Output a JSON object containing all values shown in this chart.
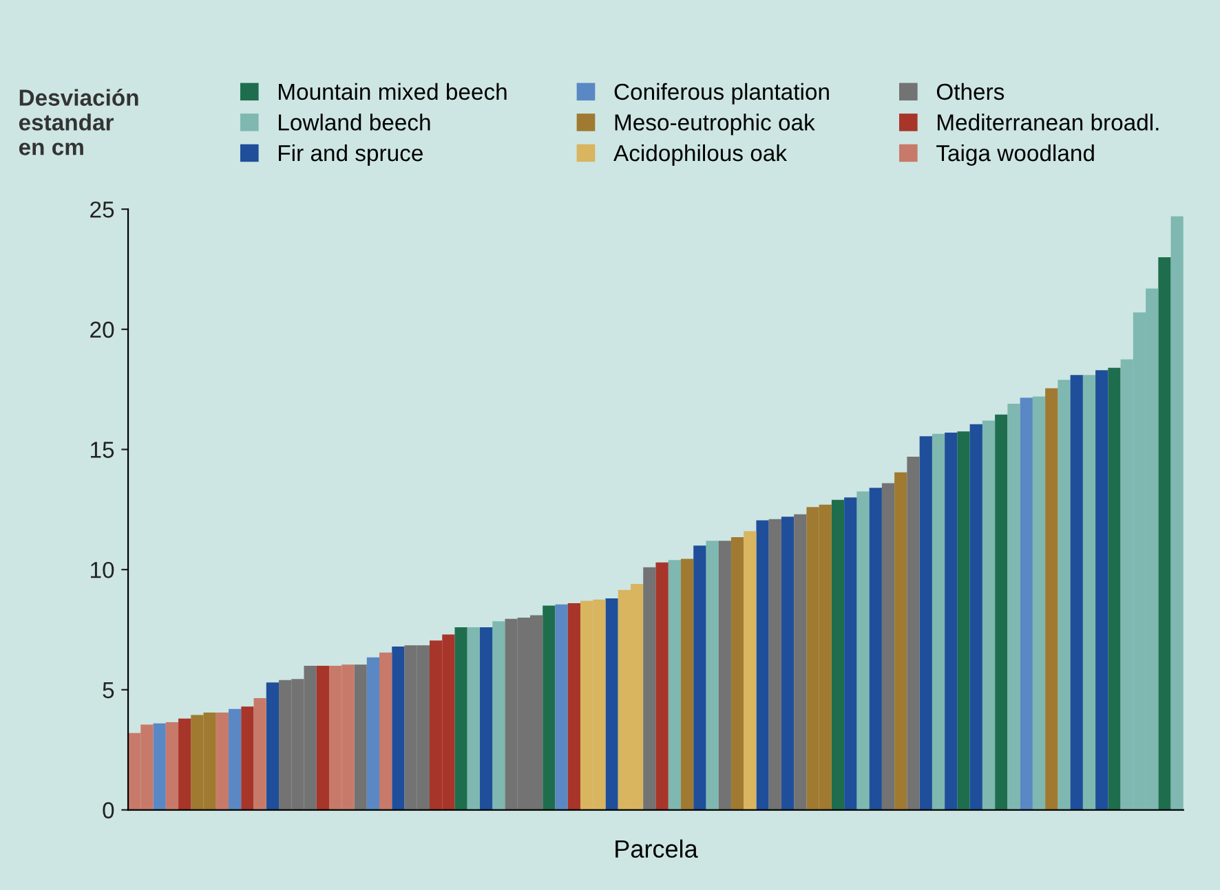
{
  "chart_data": {
    "type": "bar",
    "xlabel": "Parcela",
    "ylabel": "Desviación\nestandar\nen cm",
    "categories": [
      null,
      null,
      null,
      null,
      null,
      null,
      null,
      null,
      null,
      null,
      null,
      null,
      null,
      null,
      null,
      null,
      null,
      null,
      null,
      null,
      null,
      null,
      null,
      null,
      null,
      null,
      null,
      null,
      null,
      null,
      null,
      null,
      null,
      null,
      null,
      null,
      null,
      null,
      null,
      null,
      null,
      null,
      null,
      null,
      null,
      null,
      null,
      null,
      null,
      null,
      null,
      null,
      null,
      null,
      null,
      null,
      null,
      null,
      null,
      null,
      null,
      null,
      null,
      null,
      null,
      null,
      null,
      null,
      null,
      null,
      null,
      null,
      null,
      null,
      null,
      null,
      null,
      null,
      null,
      null,
      null,
      null,
      null,
      null
    ],
    "series": [
      {
        "name": "Mountain mixed beech",
        "color": "#1e6e4e",
        "values": [
          null,
          null,
          null,
          null,
          null,
          null,
          null,
          null,
          null,
          null,
          null,
          null,
          null,
          null,
          null,
          null,
          null,
          null,
          null,
          null,
          null,
          null,
          null,
          null,
          null,
          null,
          7.6,
          null,
          null,
          null,
          null,
          null,
          null,
          8.5,
          null,
          null,
          null,
          null,
          null,
          null,
          null,
          null,
          null,
          null,
          null,
          null,
          null,
          null,
          null,
          null,
          null,
          null,
          null,
          null,
          null,
          null,
          12.9,
          null,
          null,
          null,
          null,
          null,
          null,
          null,
          null,
          null,
          15.75,
          null,
          null,
          16.45,
          null,
          null,
          null,
          null,
          null,
          null,
          null,
          null,
          18.4,
          null,
          null,
          null,
          23.0,
          null
        ]
      },
      {
        "name": "Lowland beech",
        "color": "#7fb8b0",
        "values": [
          null,
          null,
          null,
          null,
          null,
          null,
          null,
          null,
          null,
          null,
          null,
          null,
          null,
          null,
          null,
          null,
          null,
          null,
          null,
          null,
          null,
          null,
          null,
          null,
          null,
          null,
          null,
          7.6,
          null,
          7.85,
          null,
          null,
          null,
          null,
          null,
          null,
          null,
          null,
          null,
          null,
          null,
          null,
          null,
          10.4,
          null,
          null,
          11.2,
          null,
          null,
          null,
          null,
          null,
          null,
          null,
          null,
          null,
          null,
          null,
          13.25,
          null,
          null,
          null,
          null,
          null,
          15.65,
          null,
          null,
          null,
          16.2,
          null,
          16.9,
          null,
          17.2,
          null,
          17.9,
          null,
          18.1,
          null,
          null,
          18.75,
          20.7,
          21.7,
          null,
          24.7
        ]
      },
      {
        "name": "Fir and spruce",
        "color": "#1f4f9a",
        "values": [
          null,
          null,
          null,
          null,
          null,
          null,
          null,
          null,
          null,
          null,
          null,
          5.3,
          null,
          null,
          null,
          null,
          null,
          null,
          null,
          null,
          null,
          6.8,
          null,
          null,
          null,
          null,
          null,
          null,
          7.6,
          null,
          null,
          null,
          null,
          null,
          null,
          null,
          null,
          null,
          8.8,
          null,
          null,
          null,
          null,
          null,
          null,
          11.0,
          null,
          null,
          null,
          null,
          12.05,
          null,
          12.2,
          null,
          null,
          null,
          null,
          13.0,
          null,
          13.4,
          null,
          null,
          null,
          15.55,
          null,
          15.7,
          null,
          16.05,
          null,
          null,
          null,
          null,
          null,
          null,
          null,
          18.1,
          null,
          18.3,
          null,
          null,
          null,
          null,
          null,
          null
        ]
      },
      {
        "name": "Coniferous plantation",
        "color": "#5a88c4",
        "values": [
          null,
          null,
          3.6,
          null,
          null,
          null,
          null,
          null,
          4.2,
          null,
          null,
          null,
          null,
          null,
          null,
          null,
          null,
          null,
          null,
          6.35,
          null,
          null,
          null,
          null,
          null,
          null,
          null,
          null,
          null,
          null,
          null,
          null,
          null,
          null,
          8.55,
          null,
          null,
          null,
          null,
          null,
          null,
          null,
          null,
          null,
          null,
          null,
          null,
          null,
          null,
          null,
          null,
          null,
          null,
          null,
          null,
          null,
          null,
          null,
          null,
          null,
          null,
          null,
          null,
          null,
          null,
          null,
          null,
          null,
          null,
          null,
          null,
          17.15,
          null,
          null,
          null,
          null,
          null,
          null,
          null,
          null,
          null,
          null,
          null,
          null
        ]
      },
      {
        "name": "Meso-eutrophic oak",
        "color": "#a07a30",
        "values": [
          null,
          null,
          null,
          null,
          null,
          3.95,
          4.05,
          null,
          null,
          null,
          null,
          null,
          null,
          null,
          null,
          null,
          null,
          null,
          null,
          null,
          null,
          null,
          null,
          null,
          null,
          null,
          null,
          null,
          null,
          null,
          null,
          null,
          null,
          null,
          null,
          null,
          null,
          null,
          null,
          null,
          null,
          null,
          null,
          null,
          10.45,
          null,
          null,
          null,
          11.35,
          null,
          null,
          null,
          null,
          null,
          12.6,
          12.7,
          null,
          null,
          null,
          null,
          null,
          14.05,
          null,
          null,
          null,
          null,
          null,
          null,
          null,
          null,
          null,
          null,
          null,
          17.55,
          null,
          null,
          null,
          null,
          null,
          null,
          null,
          null,
          null,
          null
        ]
      },
      {
        "name": "Acidophilous oak",
        "color": "#d9b560",
        "values": [
          null,
          null,
          null,
          null,
          null,
          null,
          null,
          null,
          null,
          null,
          null,
          null,
          null,
          null,
          null,
          null,
          null,
          null,
          null,
          null,
          null,
          null,
          null,
          null,
          null,
          null,
          null,
          null,
          null,
          null,
          null,
          null,
          null,
          null,
          null,
          null,
          8.7,
          8.75,
          null,
          9.15,
          9.4,
          null,
          null,
          null,
          null,
          null,
          null,
          null,
          null,
          11.6,
          null,
          null,
          null,
          null,
          null,
          null,
          null,
          null,
          null,
          null,
          null,
          null,
          null,
          null,
          null,
          null,
          null,
          null,
          null,
          null,
          null,
          null,
          null,
          null,
          null,
          null,
          null,
          null,
          null,
          null,
          null,
          null,
          null,
          null
        ]
      },
      {
        "name": "Others",
        "color": "#737373",
        "values": [
          null,
          null,
          null,
          null,
          null,
          null,
          null,
          null,
          null,
          null,
          null,
          null,
          5.4,
          5.45,
          6.0,
          null,
          null,
          null,
          6.05,
          null,
          null,
          null,
          6.85,
          6.85,
          null,
          null,
          null,
          null,
          null,
          null,
          7.95,
          8.0,
          8.1,
          null,
          null,
          null,
          null,
          null,
          null,
          null,
          null,
          10.1,
          null,
          null,
          null,
          null,
          null,
          11.2,
          null,
          null,
          null,
          12.1,
          null,
          12.3,
          null,
          null,
          null,
          null,
          null,
          null,
          13.6,
          null,
          14.7,
          null,
          null,
          null,
          null,
          null,
          null,
          null,
          null,
          null,
          null,
          null,
          null,
          null,
          null,
          null,
          null,
          null,
          null,
          null,
          null,
          null
        ]
      },
      {
        "name": "Mediterranean broadl.",
        "color": "#a8352a",
        "values": [
          null,
          null,
          null,
          null,
          3.8,
          null,
          null,
          null,
          null,
          4.3,
          null,
          null,
          null,
          null,
          null,
          6.0,
          null,
          null,
          null,
          null,
          null,
          null,
          null,
          null,
          7.05,
          7.3,
          null,
          null,
          null,
          null,
          null,
          null,
          null,
          null,
          null,
          8.6,
          null,
          null,
          null,
          null,
          null,
          null,
          10.3,
          null,
          null,
          null,
          null,
          null,
          null,
          null,
          null,
          null,
          null,
          null,
          null,
          null,
          null,
          null,
          null,
          null,
          null,
          null,
          null,
          null,
          null,
          null,
          null,
          null,
          null,
          null,
          null,
          null,
          null,
          null,
          null,
          null,
          null,
          null,
          null,
          null,
          null,
          null,
          null,
          null
        ]
      },
      {
        "name": "Taiga woodland",
        "color": "#c87a6a",
        "values": [
          3.2,
          3.55,
          null,
          3.65,
          null,
          null,
          null,
          4.05,
          null,
          null,
          4.65,
          null,
          null,
          null,
          null,
          null,
          6.0,
          6.05,
          null,
          null,
          6.55,
          null,
          null,
          null,
          null,
          null,
          null,
          null,
          null,
          null,
          null,
          null,
          null,
          null,
          null,
          null,
          null,
          null,
          null,
          null,
          null,
          null,
          null,
          null,
          null,
          null,
          null,
          null,
          null,
          null,
          null,
          null,
          null,
          null,
          null,
          null,
          null,
          null,
          null,
          null,
          null,
          null,
          null,
          null,
          null,
          null,
          null,
          null,
          null,
          null,
          null,
          null,
          null,
          null,
          null,
          null,
          null,
          null,
          null,
          null,
          null,
          null,
          null,
          null
        ]
      }
    ],
    "ylim": [
      0,
      25
    ],
    "yticks": [
      0,
      5,
      10,
      15,
      20,
      25
    ],
    "legend": "top",
    "grid": false
  }
}
